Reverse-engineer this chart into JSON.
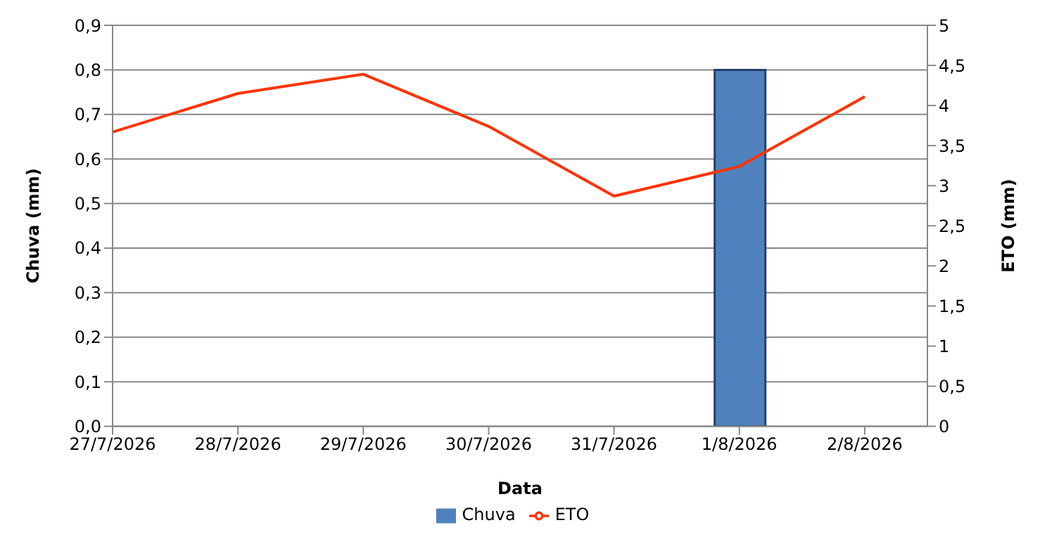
{
  "chart_data": {
    "type": "bar",
    "xlabel": "Data",
    "ylabel": "Chuva (mm)",
    "y2label": "ETO (mm)",
    "categories": [
      "27/7/2026",
      "28/7/2026",
      "29/7/2026",
      "30/7/2026",
      "31/7/2026",
      "1/8/2026",
      "2/8/2026"
    ],
    "series": [
      {
        "name": "Chuva",
        "color": "#4f81bd",
        "values": [
          0,
          0,
          0,
          0,
          0,
          0.8,
          0
        ]
      },
      {
        "name": "ETO",
        "type": "line",
        "axis": "y2",
        "color": "#ff3300",
        "values": [
          3.67,
          4.15,
          4.39,
          3.74,
          2.87,
          3.24,
          4.11
        ]
      }
    ],
    "ylim": [
      0,
      0.9
    ],
    "yticks": [
      {
        "value": 0,
        "label": "0,0"
      },
      {
        "value": 0.1,
        "label": "0,1"
      },
      {
        "value": 0.2,
        "label": "0,2"
      },
      {
        "value": 0.3,
        "label": "0,3"
      },
      {
        "value": 0.4,
        "label": "0,4"
      },
      {
        "value": 0.5,
        "label": "0,5"
      },
      {
        "value": 0.6,
        "label": "0,6"
      },
      {
        "value": 0.7,
        "label": "0,7"
      },
      {
        "value": 0.8,
        "label": "0,8"
      },
      {
        "value": 0.9,
        "label": "0,9"
      }
    ],
    "y2lim": [
      0,
      5
    ],
    "y2ticks": [
      0,
      {
        "value": 0.5,
        "label": "0,5"
      },
      1,
      {
        "value": 1.5,
        "label": "1,5"
      },
      2,
      {
        "value": 2.5,
        "label": "2,5"
      },
      3,
      {
        "value": 3.5,
        "label": "3,5"
      },
      4,
      {
        "value": 4.5,
        "label": "4,5"
      },
      5
    ],
    "grid": "y",
    "legend": "bottom",
    "marker": "none",
    "line_style": "solid"
  }
}
